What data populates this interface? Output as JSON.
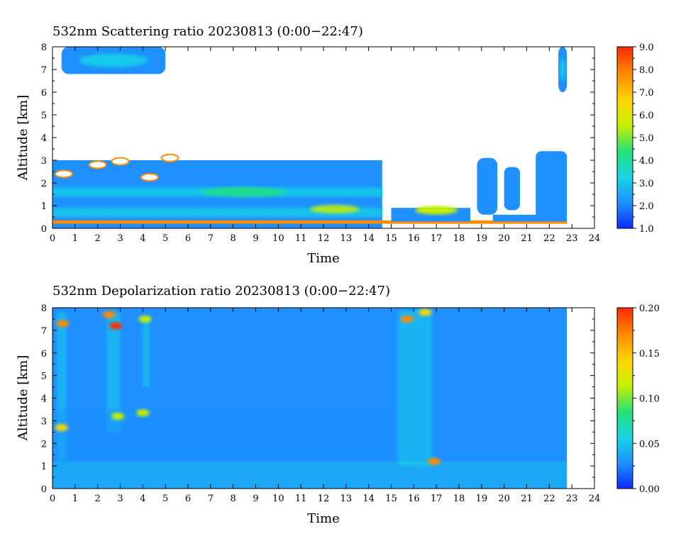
{
  "chart_data": [
    {
      "type": "heatmap",
      "title": "532nm Scattering ratio  20230813 (0:00−22:47)",
      "xlabel": "Time",
      "ylabel": "Altitude [km]",
      "xlim": [
        0,
        24
      ],
      "ylim": [
        0,
        8
      ],
      "x_ticks": [
        "0",
        "1",
        "2",
        "3",
        "4",
        "5",
        "6",
        "7",
        "8",
        "9",
        "10",
        "11",
        "12",
        "13",
        "14",
        "15",
        "16",
        "17",
        "18",
        "19",
        "20",
        "21",
        "22",
        "23",
        "24"
      ],
      "y_ticks": [
        "0",
        "1",
        "2",
        "3",
        "4",
        "5",
        "6",
        "7",
        "8"
      ],
      "colorbar": {
        "range": [
          1.0,
          9.0
        ],
        "ticks": [
          "1.0",
          "2.0",
          "3.0",
          "4.0",
          "5.0",
          "6.0",
          "7.0",
          "8.0",
          "9.0"
        ],
        "colors": [
          "#0a2cff",
          "#1e90ff",
          "#19d3e6",
          "#22e07a",
          "#c8f000",
          "#ffd400",
          "#ff8c00",
          "#ff2a00"
        ]
      },
      "data_end_hour": 22.78,
      "regions": [
        {
          "kind": "low_cloud_layer",
          "x": [
            0,
            14.6
          ],
          "alt": [
            0.0,
            3.0
          ],
          "level": 2.4
        },
        {
          "kind": "surface_layer",
          "x": [
            0,
            22.78
          ],
          "alt": [
            0.2,
            0.35
          ],
          "level": 8.0
        },
        {
          "kind": "broken_clouds",
          "x": [
            14.6,
            22.78
          ],
          "alt": [
            0.3,
            3.2
          ],
          "level": 2.0
        },
        {
          "kind": "cirrus",
          "x": [
            0.4,
            5.0
          ],
          "alt": [
            6.8,
            8.0
          ],
          "level": 3.5
        },
        {
          "kind": "cirrus",
          "x": [
            22.4,
            22.78
          ],
          "alt": [
            6.0,
            8.0
          ],
          "level": 3.0
        }
      ]
    },
    {
      "type": "heatmap",
      "title": "532nm Depolarization ratio  20230813 (0:00−22:47)",
      "xlabel": "Time",
      "ylabel": "Altitude [km]",
      "xlim": [
        0,
        24
      ],
      "ylim": [
        0,
        8
      ],
      "x_ticks": [
        "0",
        "1",
        "2",
        "3",
        "4",
        "5",
        "6",
        "7",
        "8",
        "9",
        "10",
        "11",
        "12",
        "13",
        "14",
        "15",
        "16",
        "17",
        "18",
        "19",
        "20",
        "21",
        "22",
        "23",
        "24"
      ],
      "y_ticks": [
        "0",
        "1",
        "2",
        "3",
        "4",
        "5",
        "6",
        "7",
        "8"
      ],
      "colorbar": {
        "range": [
          0.0,
          0.2
        ],
        "ticks": [
          "0.00",
          "0.05",
          "0.10",
          "0.15",
          "0.20"
        ],
        "colors": [
          "#0a2cff",
          "#1e90ff",
          "#19d3e6",
          "#22e07a",
          "#c8f000",
          "#ffd400",
          "#ff8c00",
          "#ff2a00"
        ]
      },
      "data_end_hour": 22.78,
      "background_level": 0.04,
      "hotspots": [
        {
          "t": 0.45,
          "alt": 7.3,
          "level": 0.18
        },
        {
          "t": 0.4,
          "alt": 2.7,
          "level": 0.13
        },
        {
          "t": 2.8,
          "alt": 7.2,
          "level": 0.19
        },
        {
          "t": 2.5,
          "alt": 7.7,
          "level": 0.17
        },
        {
          "t": 4.1,
          "alt": 7.5,
          "level": 0.12
        },
        {
          "t": 2.9,
          "alt": 3.2,
          "level": 0.12
        },
        {
          "t": 4.0,
          "alt": 3.35,
          "level": 0.11
        },
        {
          "t": 15.7,
          "alt": 7.5,
          "level": 0.16
        },
        {
          "t": 16.5,
          "alt": 7.8,
          "level": 0.14
        },
        {
          "t": 16.9,
          "alt": 1.2,
          "level": 0.16
        }
      ]
    }
  ]
}
